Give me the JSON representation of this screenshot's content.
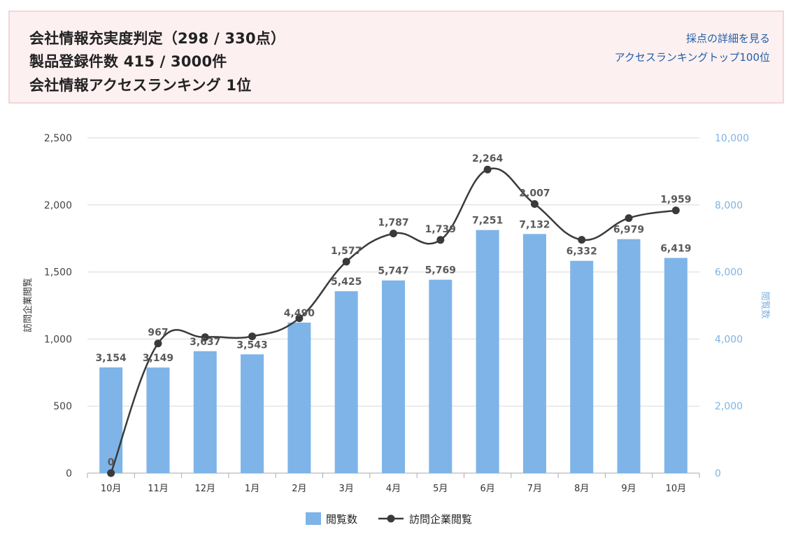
{
  "summary": {
    "line1": "会社情報充実度判定（298 / 330点）",
    "line2": "製品登録件数 415 / 3000件",
    "line3": "会社情報アクセスランキング 1位",
    "detail_link": "採点の詳細を見る",
    "ranking_link": "アクセスランキングトップ100位"
  },
  "colors": {
    "bar": "#7eb4e8",
    "line": "#3a3a3a",
    "right_axis": "#7fb3e3",
    "grid": "#d9d9d9"
  },
  "chart_data": {
    "type": "bar",
    "categories": [
      "10月",
      "11月",
      "12月",
      "1月",
      "2月",
      "3月",
      "4月",
      "5月",
      "6月",
      "7月",
      "8月",
      "9月",
      "10月"
    ],
    "series": [
      {
        "name": "閲覧数",
        "type": "bar",
        "axis": "right",
        "values": [
          3154,
          3149,
          3637,
          3543,
          4490,
          5425,
          5747,
          5769,
          7251,
          7132,
          6332,
          6979,
          6419
        ],
        "labels": [
          "3,154",
          "3,149",
          "3,637",
          "3,543",
          "4,490",
          "5,425",
          "5,747",
          "5,769",
          "7,251",
          "7,132",
          "6,332",
          "6,979",
          "6,419"
        ]
      },
      {
        "name": "訪問企業閲覧",
        "type": "line",
        "axis": "left",
        "values": [
          0,
          967,
          1014,
          1020,
          1155,
          1577,
          1787,
          1739,
          2264,
          2007,
          1740,
          1902,
          1959
        ],
        "labels": [
          "0",
          "967",
          "",
          "",
          "",
          "1,577",
          "1,787",
          "1,739",
          "2,264",
          "2,007",
          "",
          "",
          "1,959"
        ]
      }
    ],
    "left_axis": {
      "label": "訪問企業閲覧",
      "range": [
        0,
        2500
      ],
      "ticks": [
        "0",
        "500",
        "1,000",
        "1,500",
        "2,000",
        "2,500"
      ]
    },
    "right_axis": {
      "label": "閲覧数",
      "range": [
        0,
        10000
      ],
      "ticks": [
        "0",
        "2,000",
        "4,000",
        "6,000",
        "8,000",
        "10,000"
      ]
    },
    "grid": true,
    "legend_position": "bottom-center",
    "legend": [
      "閲覧数",
      "訪問企業閲覧"
    ]
  }
}
